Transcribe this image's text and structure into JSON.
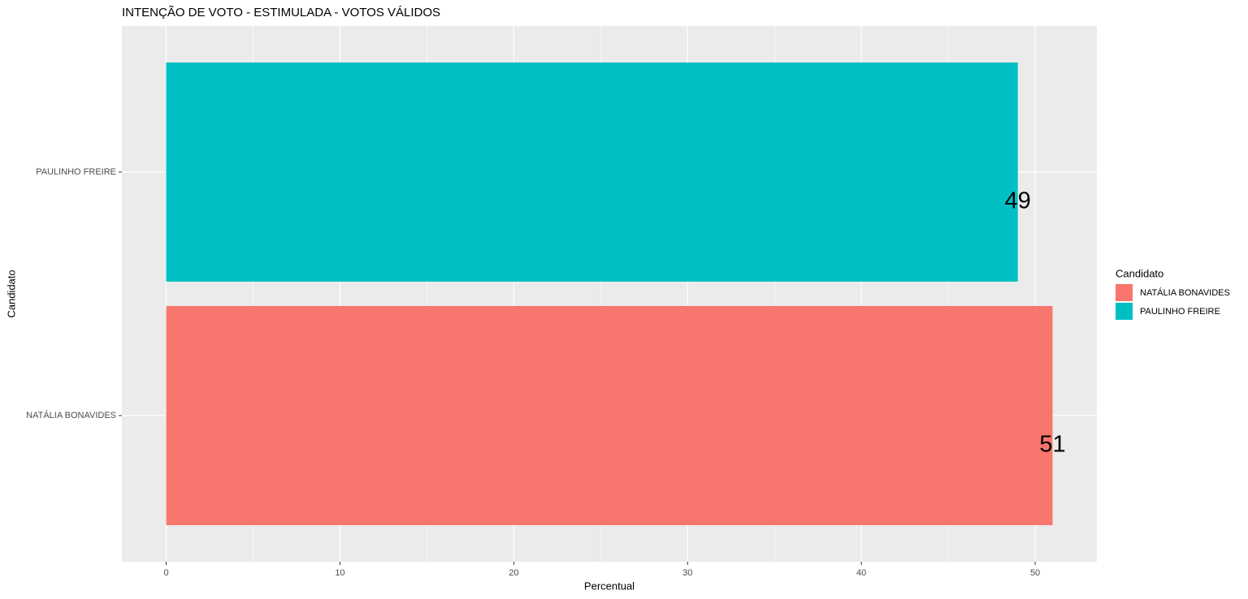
{
  "chart_data": {
    "type": "barh",
    "title": "INTENÇÃO DE VOTO - ESTIMULADA - VOTOS VÁLIDOS",
    "xlabel": "Percentual",
    "ylabel": "Candidato",
    "categories": [
      "NATÁLIA BONAVIDES",
      "PAULINHO FREIRE"
    ],
    "values": [
      51,
      49
    ],
    "colors": [
      "#F8766D",
      "#00BFC4"
    ],
    "legend_title": "Candidato",
    "xlim": [
      -2.55,
      53.55
    ],
    "xticks": [
      0,
      10,
      20,
      30,
      40,
      50
    ],
    "x_minor_grid": [
      5,
      15,
      25,
      35,
      45
    ],
    "grid": true
  }
}
